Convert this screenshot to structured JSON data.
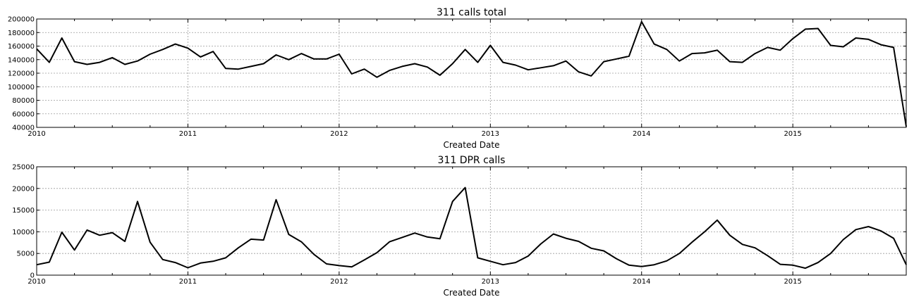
{
  "chart_data": [
    {
      "type": "line",
      "title": "311 calls total",
      "xlabel": "Created Date",
      "ylabel": "",
      "ylim": [
        40000,
        200000
      ],
      "yticks": [
        40000,
        60000,
        80000,
        100000,
        120000,
        140000,
        160000,
        180000,
        200000
      ],
      "xlim": [
        "2010-01",
        "2015-10"
      ],
      "xticks": [
        "2010",
        "2011",
        "2012",
        "2013",
        "2014",
        "2015"
      ],
      "grid": true,
      "series": [
        {
          "x": [
            "2010-01",
            "2010-02",
            "2010-03",
            "2010-04",
            "2010-05",
            "2010-06",
            "2010-07",
            "2010-08",
            "2010-09",
            "2010-10",
            "2010-11",
            "2010-12",
            "2011-01",
            "2011-02",
            "2011-03",
            "2011-04",
            "2011-05",
            "2011-06",
            "2011-07",
            "2011-08",
            "2011-09",
            "2011-10",
            "2011-11",
            "2011-12",
            "2012-01",
            "2012-02",
            "2012-03",
            "2012-04",
            "2012-05",
            "2012-06",
            "2012-07",
            "2012-08",
            "2012-09",
            "2012-10",
            "2012-11",
            "2012-12",
            "2013-01",
            "2013-02",
            "2013-03",
            "2013-04",
            "2013-05",
            "2013-06",
            "2013-07",
            "2013-08",
            "2013-09",
            "2013-10",
            "2013-11",
            "2013-12",
            "2014-01",
            "2014-02",
            "2014-03",
            "2014-04",
            "2014-05",
            "2014-06",
            "2014-07",
            "2014-08",
            "2014-09",
            "2014-10",
            "2014-11",
            "2014-12",
            "2015-01",
            "2015-02",
            "2015-03",
            "2015-04",
            "2015-05",
            "2015-06",
            "2015-07",
            "2015-08",
            "2015-09",
            "2015-10"
          ],
          "values": [
            156000,
            136000,
            172000,
            137000,
            133000,
            136000,
            143000,
            133000,
            138000,
            148000,
            155000,
            163000,
            157000,
            144000,
            152000,
            127000,
            126000,
            130000,
            134000,
            147000,
            140000,
            149000,
            141000,
            141000,
            148000,
            119000,
            126000,
            114000,
            124000,
            130000,
            134000,
            129000,
            117000,
            134000,
            155000,
            136000,
            161000,
            136000,
            132000,
            125000,
            128000,
            131000,
            138000,
            122000,
            116000,
            137000,
            141000,
            145000,
            196000,
            163000,
            155000,
            138000,
            149000,
            150000,
            154000,
            137000,
            136000,
            149000,
            158000,
            154000,
            171000,
            185000,
            186000,
            161000,
            159000,
            172000,
            170000,
            162000,
            158000,
            41000
          ]
        }
      ]
    },
    {
      "type": "line",
      "title": "311 DPR calls",
      "xlabel": "Created Date",
      "ylabel": "",
      "ylim": [
        0,
        25000
      ],
      "yticks": [
        0,
        5000,
        10000,
        15000,
        20000,
        25000
      ],
      "xlim": [
        "2010-01",
        "2015-10"
      ],
      "xticks": [
        "2010",
        "2011",
        "2012",
        "2013",
        "2014",
        "2015"
      ],
      "grid": true,
      "series": [
        {
          "x": [
            "2010-01",
            "2010-02",
            "2010-03",
            "2010-04",
            "2010-05",
            "2010-06",
            "2010-07",
            "2010-08",
            "2010-09",
            "2010-10",
            "2010-11",
            "2010-12",
            "2011-01",
            "2011-02",
            "2011-03",
            "2011-04",
            "2011-05",
            "2011-06",
            "2011-07",
            "2011-08",
            "2011-09",
            "2011-10",
            "2011-11",
            "2011-12",
            "2012-01",
            "2012-02",
            "2012-03",
            "2012-04",
            "2012-05",
            "2012-06",
            "2012-07",
            "2012-08",
            "2012-09",
            "2012-10",
            "2012-11",
            "2012-12",
            "2013-01",
            "2013-02",
            "2013-03",
            "2013-04",
            "2013-05",
            "2013-06",
            "2013-07",
            "2013-08",
            "2013-09",
            "2013-10",
            "2013-11",
            "2013-12",
            "2014-01",
            "2014-02",
            "2014-03",
            "2014-04",
            "2014-05",
            "2014-06",
            "2014-07",
            "2014-08",
            "2014-09",
            "2014-10",
            "2014-11",
            "2014-12",
            "2015-01",
            "2015-02",
            "2015-03",
            "2015-04",
            "2015-05",
            "2015-06",
            "2015-07",
            "2015-08",
            "2015-09",
            "2015-10"
          ],
          "values": [
            2400,
            3000,
            9900,
            5800,
            10400,
            9200,
            9800,
            7800,
            17000,
            7600,
            3600,
            2900,
            1700,
            2800,
            3200,
            4000,
            6300,
            8300,
            8100,
            17400,
            9400,
            7700,
            4800,
            2600,
            2200,
            1900,
            3500,
            5200,
            7700,
            8700,
            9700,
            8800,
            8400,
            17000,
            20200,
            4000,
            3200,
            2400,
            2900,
            4400,
            7200,
            9500,
            8500,
            7800,
            6200,
            5600,
            3800,
            2300,
            2000,
            2400,
            3300,
            5000,
            7600,
            10000,
            12700,
            9200,
            7100,
            6300,
            4500,
            2500,
            2300,
            1600,
            2900,
            5000,
            8200,
            10500,
            11200,
            10200,
            8500,
            2400
          ]
        }
      ]
    }
  ]
}
